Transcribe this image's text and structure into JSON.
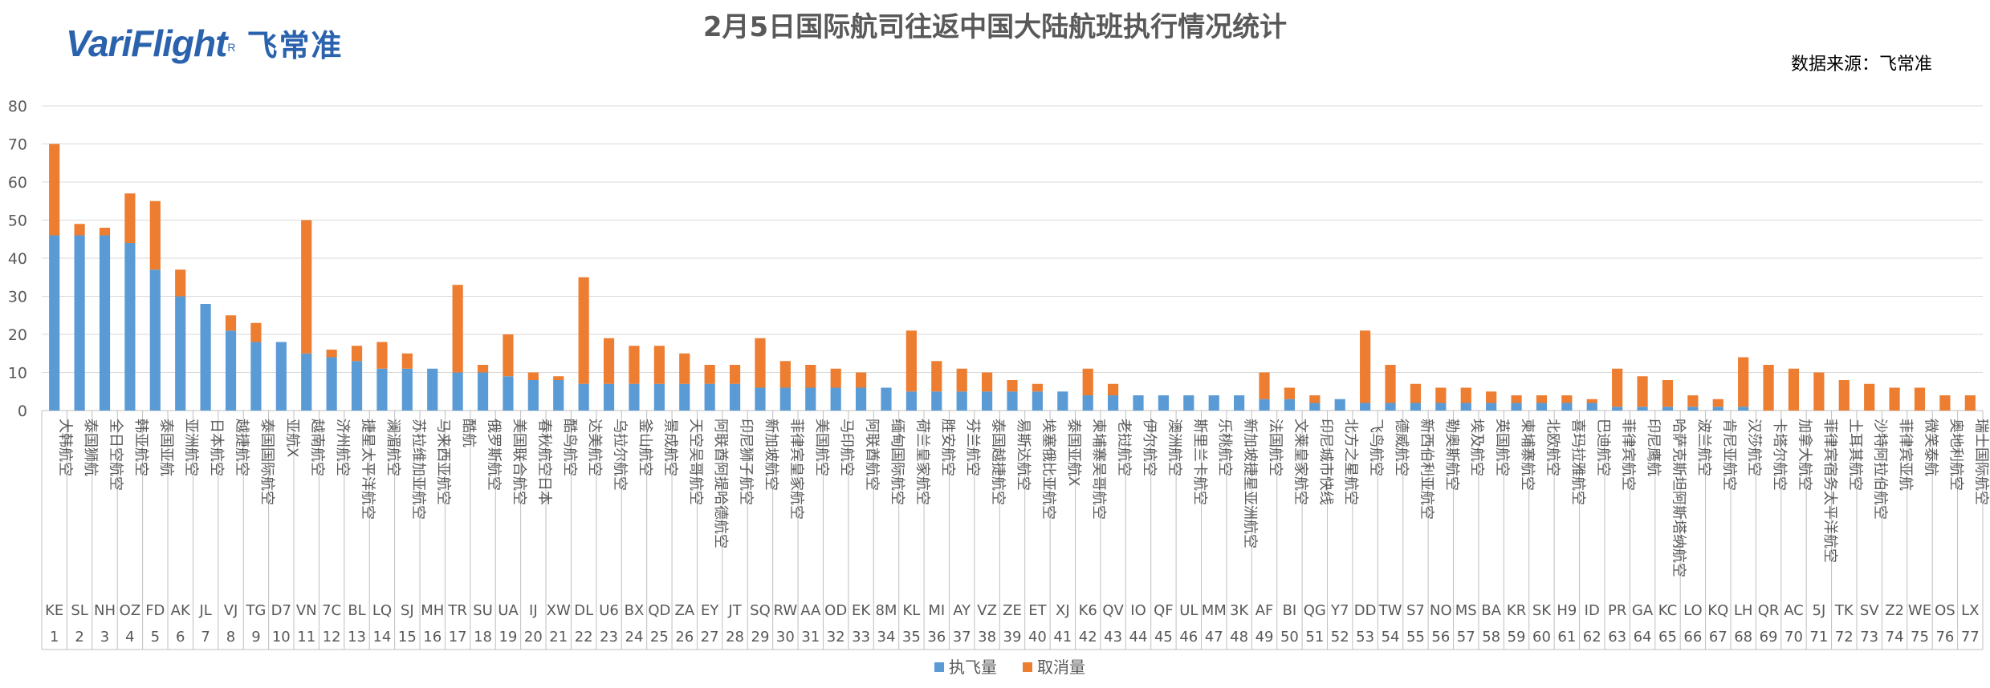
{
  "logo": {
    "brand": "VariFlight",
    "reg": "R",
    "cn": "飞常准"
  },
  "source": "数据来源：飞常准",
  "chart_data": {
    "type": "bar",
    "stacked": true,
    "title": "2月5日国际航司往返中国大陆航班执行情况统计",
    "ylim": [
      0,
      80
    ],
    "yticks": [
      0,
      10,
      20,
      30,
      40,
      50,
      60,
      70,
      80
    ],
    "grid": true,
    "legend_position": "bottom",
    "colors": {
      "executed": "#5b9bd5",
      "cancelled": "#ed7d31",
      "grid": "#d9d9d9",
      "axis": "#bfbfbf",
      "text": "#595959"
    },
    "series": [
      {
        "name": "执飞量",
        "key": "executed",
        "values": [
          46,
          46,
          46,
          44,
          37,
          30,
          28,
          21,
          18,
          18,
          15,
          14,
          13,
          11,
          11,
          11,
          10,
          10,
          9,
          8,
          8,
          7,
          7,
          7,
          7,
          7,
          7,
          7,
          6,
          6,
          6,
          6,
          6,
          6,
          5,
          5,
          5,
          5,
          5,
          5,
          5,
          4,
          4,
          4,
          4,
          4,
          4,
          4,
          3,
          3,
          2,
          3,
          2,
          2,
          2,
          2,
          2,
          2,
          2,
          2,
          2,
          2,
          1,
          1,
          1,
          1,
          1,
          1,
          0,
          0,
          0,
          0,
          0,
          0,
          0,
          0,
          0
        ]
      },
      {
        "name": "取消量",
        "key": "cancelled",
        "values": [
          24,
          3,
          2,
          13,
          18,
          7,
          0,
          4,
          5,
          0,
          35,
          2,
          4,
          7,
          4,
          0,
          23,
          2,
          11,
          2,
          1,
          28,
          12,
          10,
          10,
          8,
          5,
          5,
          13,
          7,
          6,
          5,
          4,
          0,
          16,
          8,
          6,
          5,
          3,
          2,
          0,
          7,
          3,
          0,
          0,
          0,
          0,
          0,
          7,
          3,
          2,
          0,
          19,
          10,
          5,
          4,
          4,
          3,
          2,
          2,
          2,
          1,
          10,
          8,
          7,
          3,
          2,
          13,
          12,
          11,
          10,
          8,
          7,
          6,
          6,
          4,
          4
        ]
      }
    ],
    "categories": [
      {
        "idx": "1",
        "code": "KE",
        "name": "大韩航空"
      },
      {
        "idx": "2",
        "code": "SL",
        "name": "泰国狮航"
      },
      {
        "idx": "3",
        "code": "NH",
        "name": "全日空航空"
      },
      {
        "idx": "4",
        "code": "OZ",
        "name": "韩亚航空"
      },
      {
        "idx": "5",
        "code": "FD",
        "name": "泰国亚航"
      },
      {
        "idx": "6",
        "code": "AK",
        "name": "亚洲航空"
      },
      {
        "idx": "7",
        "code": "JL",
        "name": "日本航空"
      },
      {
        "idx": "8",
        "code": "VJ",
        "name": "越捷航空"
      },
      {
        "idx": "9",
        "code": "TG",
        "name": "泰国国际航空"
      },
      {
        "idx": "10",
        "code": "D7",
        "name": "亚航X"
      },
      {
        "idx": "11",
        "code": "VN",
        "name": "越南航空"
      },
      {
        "idx": "12",
        "code": "7C",
        "name": "济州航空"
      },
      {
        "idx": "13",
        "code": "BL",
        "name": "捷星太平洋航空"
      },
      {
        "idx": "14",
        "code": "LQ",
        "name": "澜湄航空"
      },
      {
        "idx": "15",
        "code": "SJ",
        "name": "苏拉维加亚航空"
      },
      {
        "idx": "16",
        "code": "MH",
        "name": "马来西亚航空"
      },
      {
        "idx": "17",
        "code": "TR",
        "name": "酷航"
      },
      {
        "idx": "18",
        "code": "SU",
        "name": "俄罗斯航空"
      },
      {
        "idx": "19",
        "code": "UA",
        "name": "美国联合航空"
      },
      {
        "idx": "20",
        "code": "IJ",
        "name": "春秋航空日本"
      },
      {
        "idx": "21",
        "code": "XW",
        "name": "酷鸟航空"
      },
      {
        "idx": "22",
        "code": "DL",
        "name": "达美航空"
      },
      {
        "idx": "23",
        "code": "U6",
        "name": "乌拉尔航空"
      },
      {
        "idx": "24",
        "code": "BX",
        "name": "釜山航空"
      },
      {
        "idx": "25",
        "code": "QD",
        "name": "景成航空"
      },
      {
        "idx": "26",
        "code": "ZA",
        "name": "天空吴哥航空"
      },
      {
        "idx": "27",
        "code": "EY",
        "name": "阿联酋阿提哈德航空"
      },
      {
        "idx": "28",
        "code": "JT",
        "name": "印尼狮子航空"
      },
      {
        "idx": "29",
        "code": "SQ",
        "name": "新加坡航空"
      },
      {
        "idx": "30",
        "code": "RW",
        "name": "菲律宾皇家航空"
      },
      {
        "idx": "31",
        "code": "AA",
        "name": "美国航空"
      },
      {
        "idx": "32",
        "code": "OD",
        "name": "马印航空"
      },
      {
        "idx": "33",
        "code": "EK",
        "name": "阿联酋航空"
      },
      {
        "idx": "34",
        "code": "8M",
        "name": "缅甸国际航空"
      },
      {
        "idx": "35",
        "code": "KL",
        "name": "荷兰皇家航空"
      },
      {
        "idx": "36",
        "code": "MI",
        "name": "胜安航空"
      },
      {
        "idx": "37",
        "code": "AY",
        "name": "芬兰航空"
      },
      {
        "idx": "38",
        "code": "VZ",
        "name": "泰国越捷航空"
      },
      {
        "idx": "39",
        "code": "ZE",
        "name": "易斯达航空"
      },
      {
        "idx": "40",
        "code": "ET",
        "name": "埃塞俄比亚航空"
      },
      {
        "idx": "41",
        "code": "XJ",
        "name": "泰国亚航X"
      },
      {
        "idx": "42",
        "code": "K6",
        "name": "柬埔寨吴哥航空"
      },
      {
        "idx": "43",
        "code": "QV",
        "name": "老挝航空"
      },
      {
        "idx": "44",
        "code": "IO",
        "name": "伊尔航空"
      },
      {
        "idx": "45",
        "code": "QF",
        "name": "澳洲航空"
      },
      {
        "idx": "46",
        "code": "UL",
        "name": "斯里兰卡航空"
      },
      {
        "idx": "47",
        "code": "MM",
        "name": "乐桃航空"
      },
      {
        "idx": "48",
        "code": "3K",
        "name": "新加坡捷星亚洲航空"
      },
      {
        "idx": "49",
        "code": "AF",
        "name": "法国航空"
      },
      {
        "idx": "50",
        "code": "BI",
        "name": "文莱皇家航空"
      },
      {
        "idx": "51",
        "code": "QG",
        "name": "印尼城市快线"
      },
      {
        "idx": "52",
        "code": "Y7",
        "name": "北方之星航空"
      },
      {
        "idx": "53",
        "code": "DD",
        "name": "飞鸟航空"
      },
      {
        "idx": "54",
        "code": "TW",
        "name": "德威航空"
      },
      {
        "idx": "55",
        "code": "S7",
        "name": "新西伯利亚航空"
      },
      {
        "idx": "56",
        "code": "NO",
        "name": "勒奥斯航空"
      },
      {
        "idx": "57",
        "code": "MS",
        "name": "埃及航空"
      },
      {
        "idx": "58",
        "code": "BA",
        "name": "英国航空"
      },
      {
        "idx": "59",
        "code": "KR",
        "name": "柬埔寨航空"
      },
      {
        "idx": "60",
        "code": "SK",
        "name": "北欧航空"
      },
      {
        "idx": "61",
        "code": "H9",
        "name": "喜玛拉雅航空"
      },
      {
        "idx": "62",
        "code": "ID",
        "name": "巴迪航空"
      },
      {
        "idx": "63",
        "code": "PR",
        "name": "菲律宾航空"
      },
      {
        "idx": "64",
        "code": "GA",
        "name": "印尼鹰航"
      },
      {
        "idx": "65",
        "code": "KC",
        "name": "哈萨克斯坦阿斯塔纳航空"
      },
      {
        "idx": "66",
        "code": "LO",
        "name": "波兰航空"
      },
      {
        "idx": "67",
        "code": "KQ",
        "name": "肯尼亚航空"
      },
      {
        "idx": "68",
        "code": "LH",
        "name": "汉莎航空"
      },
      {
        "idx": "69",
        "code": "QR",
        "name": "卡塔尔航空"
      },
      {
        "idx": "70",
        "code": "AC",
        "name": "加拿大航空"
      },
      {
        "idx": "71",
        "code": "5J",
        "name": "菲律宾宿务太平洋航空"
      },
      {
        "idx": "72",
        "code": "TK",
        "name": "土耳其航空"
      },
      {
        "idx": "73",
        "code": "SV",
        "name": "沙特阿拉伯航空"
      },
      {
        "idx": "74",
        "code": "Z2",
        "name": "菲律宾亚航"
      },
      {
        "idx": "75",
        "code": "WE",
        "name": "微笑泰航"
      },
      {
        "idx": "76",
        "code": "OS",
        "name": "奥地利航空"
      },
      {
        "idx": "77",
        "code": "LX",
        "name": "瑞士国际航空"
      }
    ]
  }
}
